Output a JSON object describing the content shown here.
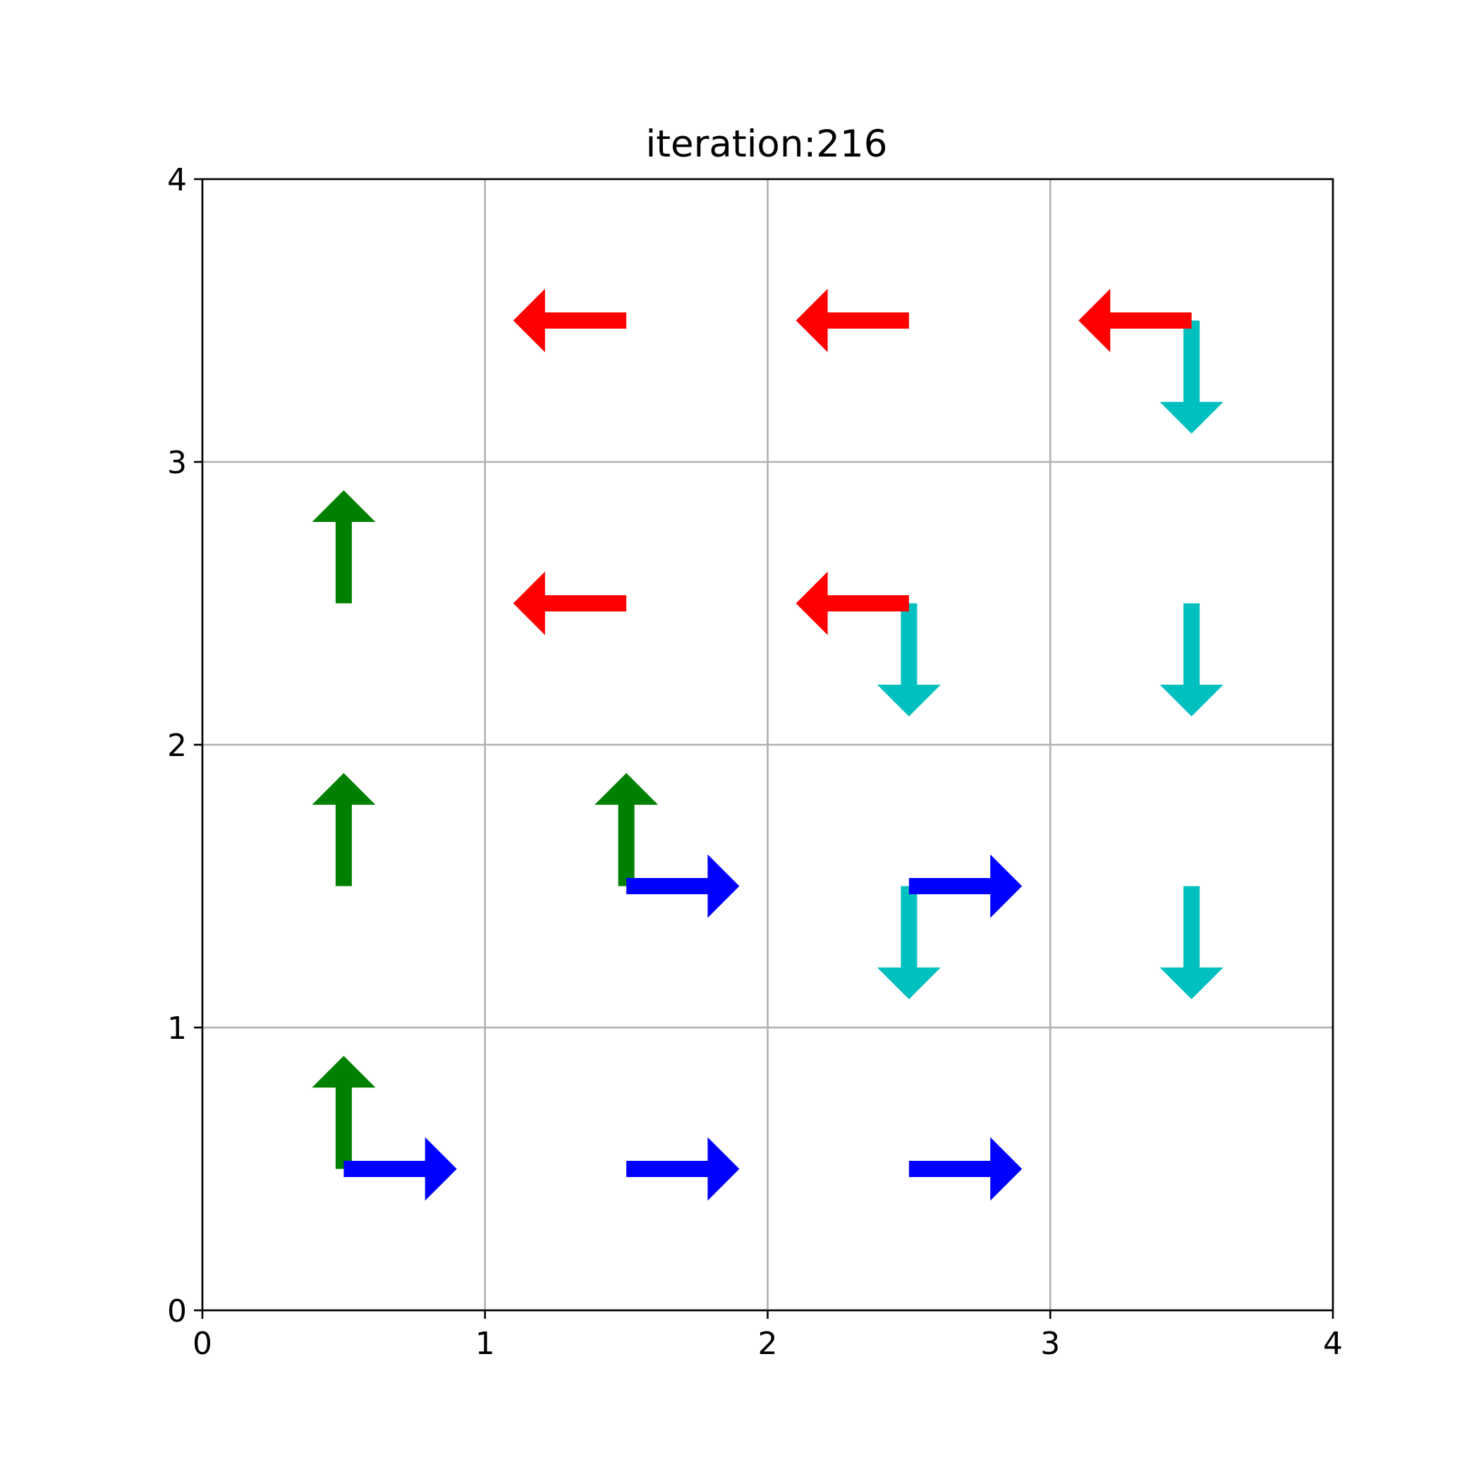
{
  "chart_data": {
    "type": "quiver",
    "title": "iteration:216",
    "xlabel": "",
    "ylabel": "",
    "xlim": [
      0,
      4
    ],
    "ylim": [
      0,
      4
    ],
    "xticks": [
      "0",
      "1",
      "2",
      "3",
      "4"
    ],
    "yticks": [
      "0",
      "1",
      "2",
      "3",
      "4"
    ],
    "grid": true,
    "arrow_length": 0.4,
    "colors": {
      "up": "#008000",
      "right": "#0000ff",
      "down": "#00bfbf",
      "left": "#ff0000",
      "grid": "#b0b0b0",
      "axes": "#000000"
    },
    "arrows": [
      {
        "x": 0.5,
        "y": 0.5,
        "direction": "up"
      },
      {
        "x": 0.5,
        "y": 0.5,
        "direction": "right"
      },
      {
        "x": 1.5,
        "y": 0.5,
        "direction": "right"
      },
      {
        "x": 2.5,
        "y": 0.5,
        "direction": "right"
      },
      {
        "x": 0.5,
        "y": 1.5,
        "direction": "up"
      },
      {
        "x": 1.5,
        "y": 1.5,
        "direction": "up"
      },
      {
        "x": 1.5,
        "y": 1.5,
        "direction": "right"
      },
      {
        "x": 2.5,
        "y": 1.5,
        "direction": "down"
      },
      {
        "x": 2.5,
        "y": 1.5,
        "direction": "right"
      },
      {
        "x": 3.5,
        "y": 1.5,
        "direction": "down"
      },
      {
        "x": 0.5,
        "y": 2.5,
        "direction": "up"
      },
      {
        "x": 1.5,
        "y": 2.5,
        "direction": "left"
      },
      {
        "x": 2.5,
        "y": 2.5,
        "direction": "down"
      },
      {
        "x": 2.5,
        "y": 2.5,
        "direction": "left"
      },
      {
        "x": 3.5,
        "y": 2.5,
        "direction": "down"
      },
      {
        "x": 1.5,
        "y": 3.5,
        "direction": "left"
      },
      {
        "x": 2.5,
        "y": 3.5,
        "direction": "left"
      },
      {
        "x": 3.5,
        "y": 3.5,
        "direction": "down"
      },
      {
        "x": 3.5,
        "y": 3.5,
        "direction": "left"
      }
    ]
  }
}
